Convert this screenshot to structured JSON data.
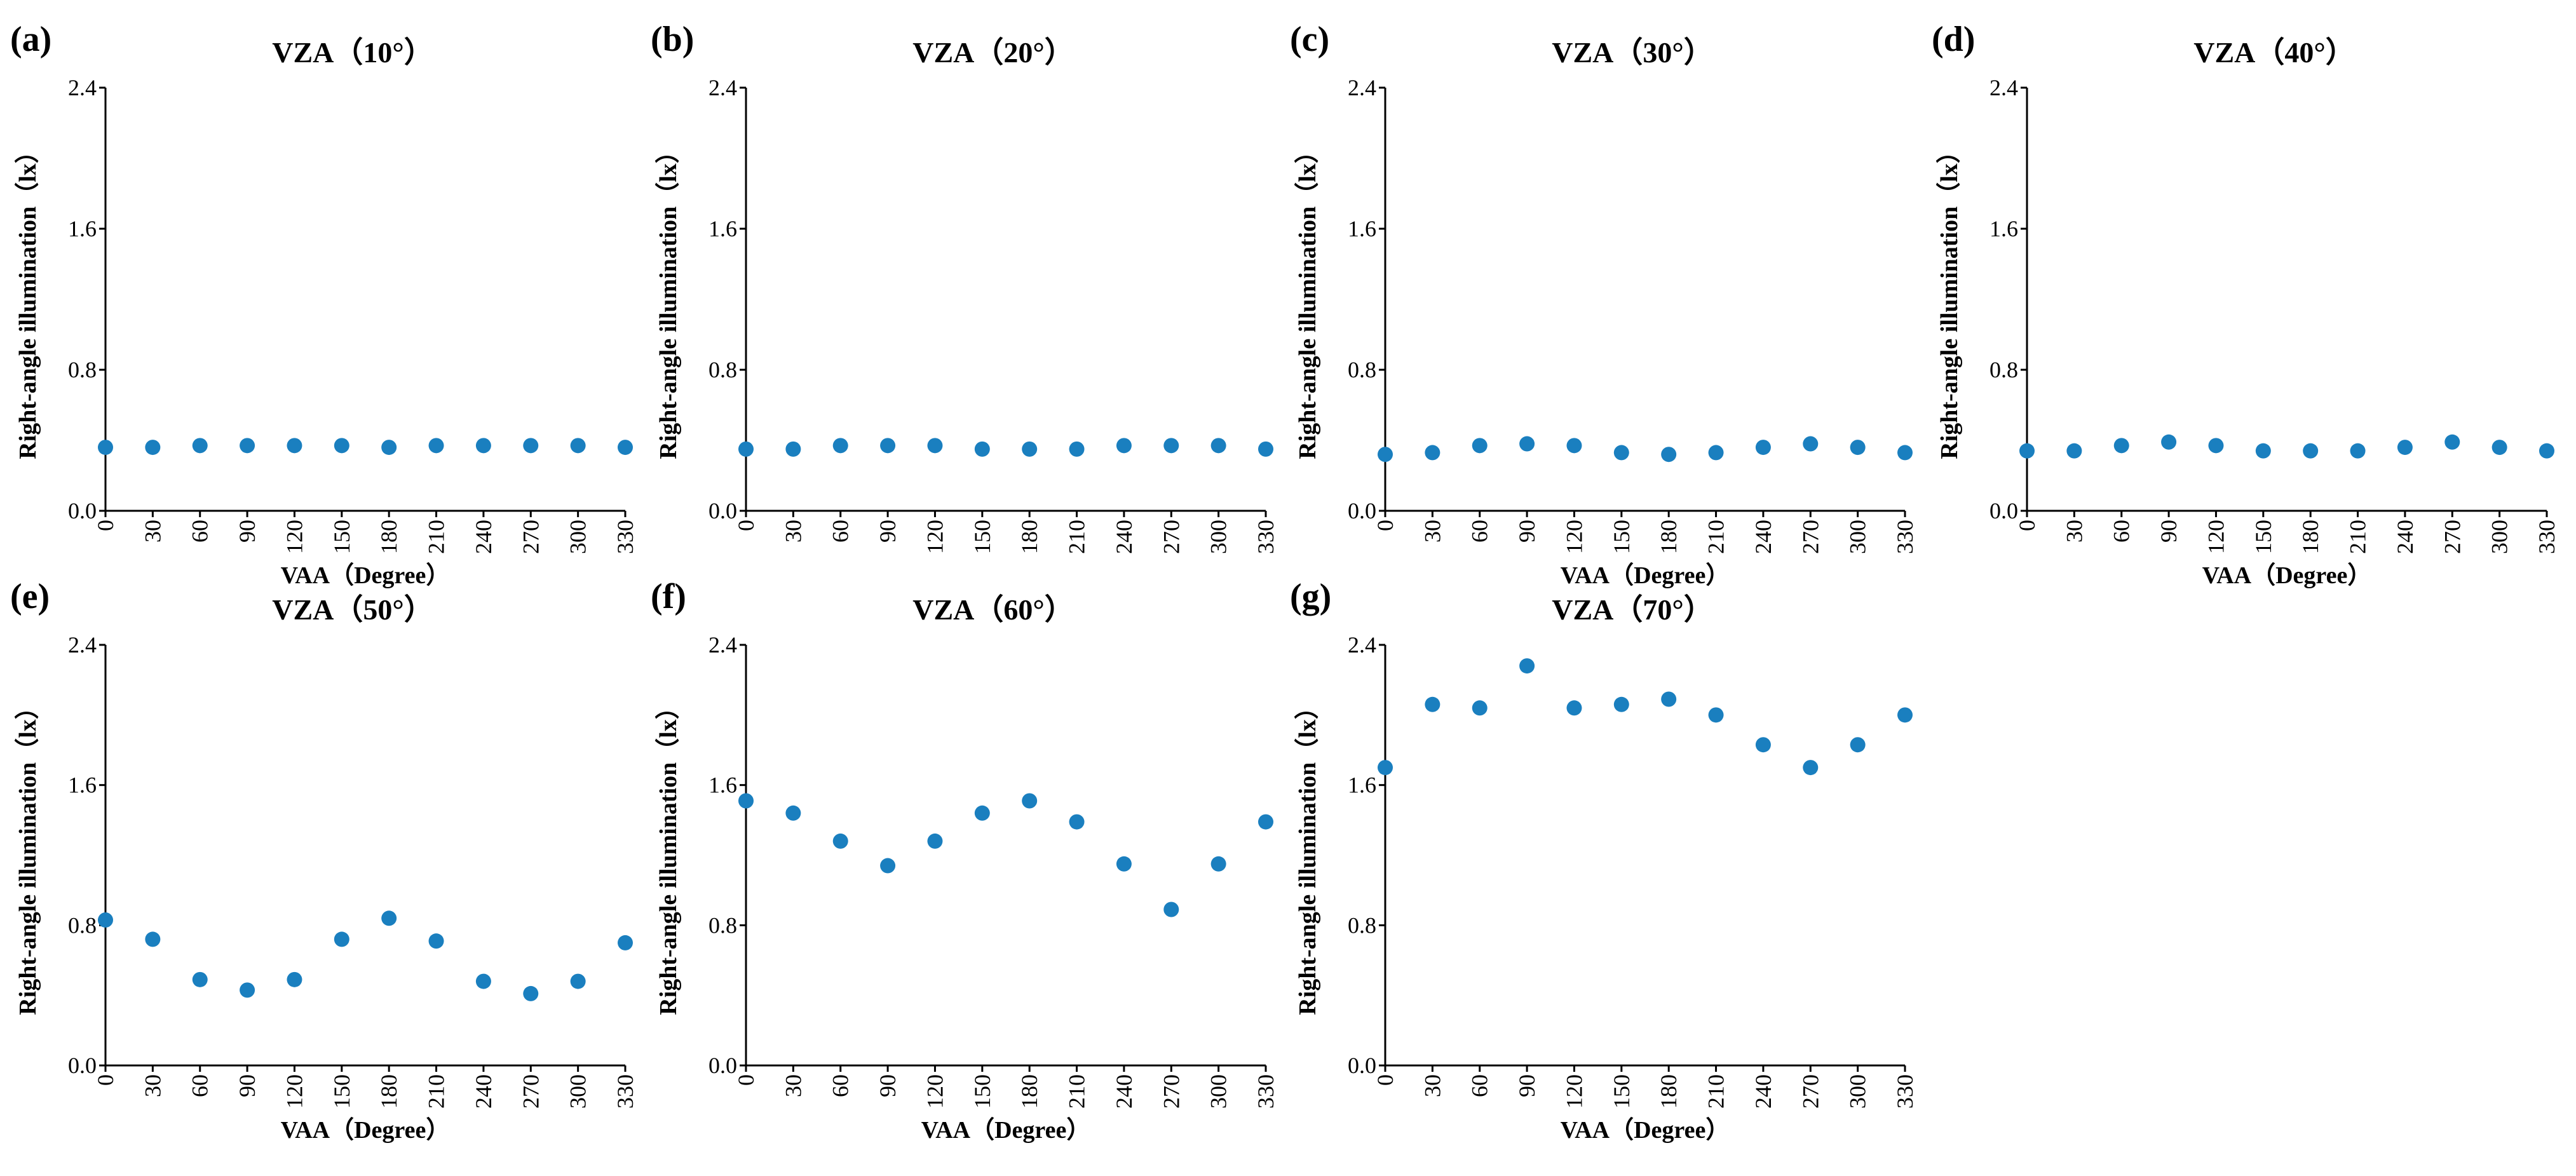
{
  "chart_data": [
    {
      "panel": "(a)",
      "type": "scatter",
      "title": "VZA（10°）",
      "xlabel": "VAA（Degree）",
      "ylabel": "Right-angle illumination（lx）",
      "x": [
        0,
        30,
        60,
        90,
        120,
        150,
        180,
        210,
        240,
        270,
        300,
        330
      ],
      "y": [
        0.36,
        0.36,
        0.37,
        0.37,
        0.37,
        0.37,
        0.36,
        0.37,
        0.37,
        0.37,
        0.37,
        0.36
      ],
      "ylim": [
        0,
        2.4
      ],
      "yticks": [
        "0.0",
        "0.8",
        "1.6",
        "2.4"
      ],
      "xticks": [
        "0",
        "30",
        "60",
        "90",
        "120",
        "150",
        "180",
        "210",
        "240",
        "270",
        "300",
        "330"
      ],
      "grid": false,
      "marker_color": "#1a7fbf"
    },
    {
      "panel": "(b)",
      "type": "scatter",
      "title": "VZA（20°）",
      "xlabel": "",
      "ylabel": "Right-angle illumination（lx）",
      "x": [
        0,
        30,
        60,
        90,
        120,
        150,
        180,
        210,
        240,
        270,
        300,
        330
      ],
      "y": [
        0.35,
        0.35,
        0.37,
        0.37,
        0.37,
        0.35,
        0.35,
        0.35,
        0.37,
        0.37,
        0.37,
        0.35
      ],
      "ylim": [
        0,
        2.4
      ],
      "yticks": [
        "0.0",
        "0.8",
        "1.6",
        "2.4"
      ],
      "xticks": [
        "0",
        "30",
        "60",
        "90",
        "120",
        "150",
        "180",
        "210",
        "240",
        "270",
        "300",
        "330"
      ],
      "grid": false,
      "marker_color": "#1a7fbf"
    },
    {
      "panel": "(c)",
      "type": "scatter",
      "title": "VZA（30°）",
      "xlabel": "VAA（Degree）",
      "ylabel": "Right-angle illumination（lx）",
      "x": [
        0,
        30,
        60,
        90,
        120,
        150,
        180,
        210,
        240,
        270,
        300,
        330
      ],
      "y": [
        0.32,
        0.33,
        0.37,
        0.38,
        0.37,
        0.33,
        0.32,
        0.33,
        0.36,
        0.38,
        0.36,
        0.33
      ],
      "ylim": [
        0,
        2.4
      ],
      "yticks": [
        "0.0",
        "0.8",
        "1.6",
        "2.4"
      ],
      "xticks": [
        "0",
        "30",
        "60",
        "90",
        "120",
        "150",
        "180",
        "210",
        "240",
        "270",
        "300",
        "330"
      ],
      "grid": false,
      "marker_color": "#1a7fbf"
    },
    {
      "panel": "(d)",
      "type": "scatter",
      "title": "VZA（40°）",
      "xlabel": "VAA（Degree）",
      "ylabel": "Right-angle illumination（lx）",
      "x": [
        0,
        30,
        60,
        90,
        120,
        150,
        180,
        210,
        240,
        270,
        300,
        330
      ],
      "y": [
        0.34,
        0.34,
        0.37,
        0.39,
        0.37,
        0.34,
        0.34,
        0.34,
        0.36,
        0.39,
        0.36,
        0.34
      ],
      "ylim": [
        0,
        2.4
      ],
      "yticks": [
        "0.0",
        "0.8",
        "1.6",
        "2.4"
      ],
      "xticks": [
        "0",
        "30",
        "60",
        "90",
        "120",
        "150",
        "180",
        "210",
        "240",
        "270",
        "300",
        "330"
      ],
      "grid": false,
      "marker_color": "#1a7fbf"
    },
    {
      "panel": "(e)",
      "type": "scatter",
      "title": "VZA（50°）",
      "xlabel": "VAA（Degree）",
      "ylabel": "Right-angle illumination（lx）",
      "x": [
        0,
        30,
        60,
        90,
        120,
        150,
        180,
        210,
        240,
        270,
        300,
        330
      ],
      "y": [
        0.83,
        0.72,
        0.49,
        0.43,
        0.49,
        0.72,
        0.84,
        0.71,
        0.48,
        0.41,
        0.48,
        0.7
      ],
      "ylim": [
        0,
        2.4
      ],
      "yticks": [
        "0.0",
        "0.8",
        "1.6",
        "2.4"
      ],
      "xticks": [
        "0",
        "30",
        "60",
        "90",
        "120",
        "150",
        "180",
        "210",
        "240",
        "270",
        "300",
        "330"
      ],
      "grid": false,
      "marker_color": "#1a7fbf"
    },
    {
      "panel": "(f)",
      "type": "scatter",
      "title": "VZA（60°）",
      "xlabel": "VAA（Degree）",
      "ylabel": "Right-angle illumination（lx）",
      "x": [
        0,
        30,
        60,
        90,
        120,
        150,
        180,
        210,
        240,
        270,
        300,
        330
      ],
      "y": [
        1.51,
        1.44,
        1.28,
        1.14,
        1.28,
        1.44,
        1.51,
        1.39,
        1.15,
        0.89,
        1.15,
        1.39
      ],
      "ylim": [
        0,
        2.4
      ],
      "yticks": [
        "0.0",
        "0.8",
        "1.6",
        "2.4"
      ],
      "xticks": [
        "0",
        "30",
        "60",
        "90",
        "120",
        "150",
        "180",
        "210",
        "240",
        "270",
        "300",
        "330"
      ],
      "grid": false,
      "marker_color": "#1a7fbf"
    },
    {
      "panel": "(g)",
      "type": "scatter",
      "title": "VZA（70°）",
      "xlabel": "VAA（Degree）",
      "ylabel": "Right-angle illumination（lx）",
      "x": [
        0,
        30,
        60,
        90,
        120,
        150,
        180,
        210,
        240,
        270,
        300,
        330
      ],
      "y": [
        1.7,
        2.06,
        2.04,
        2.28,
        2.04,
        2.06,
        2.09,
        2.0,
        1.83,
        1.7,
        1.83,
        2.0
      ],
      "ylim": [
        0,
        2.4
      ],
      "yticks": [
        "0.0",
        "0.8",
        "1.6",
        "2.4"
      ],
      "xticks": [
        "0",
        "30",
        "60",
        "90",
        "120",
        "150",
        "180",
        "210",
        "240",
        "270",
        "300",
        "330"
      ],
      "grid": false,
      "marker_color": "#1a7fbf"
    }
  ]
}
